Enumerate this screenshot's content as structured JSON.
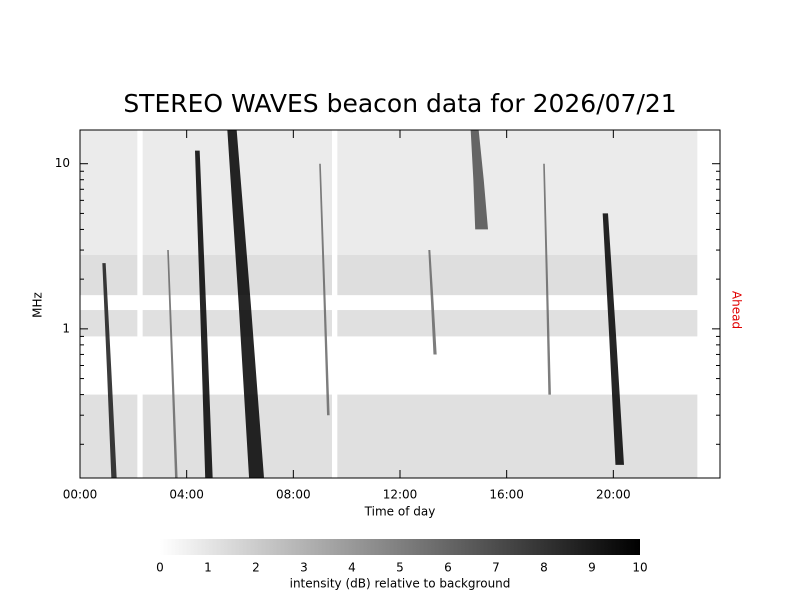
{
  "chart_data": {
    "type": "spectrogram",
    "title": "STEREO WAVES beacon data for 2026/07/21",
    "x_label": "Time of day",
    "y_label": "MHz",
    "side_label": "Ahead",
    "side_label_color": "#e00000",
    "xlim": [
      0,
      24
    ],
    "xticks": [
      {
        "value": 0,
        "label": "00:00"
      },
      {
        "value": 4,
        "label": "04:00"
      },
      {
        "value": 8,
        "label": "08:00"
      },
      {
        "value": 12,
        "label": "12:00"
      },
      {
        "value": 16,
        "label": "16:00"
      },
      {
        "value": 20,
        "label": "20:00"
      }
    ],
    "ylim": [
      0.125,
      16.0
    ],
    "log_y": true,
    "yticks": [
      1,
      10
    ],
    "yminorticks": [
      0.2,
      0.3,
      0.4,
      0.5,
      0.6,
      0.7,
      0.8,
      0.9,
      2,
      3,
      4,
      5,
      6,
      7,
      8,
      9
    ],
    "coverage": [
      0,
      23.15
    ],
    "gaps": [
      [
        2.15,
        2.35
      ],
      [
        9.45,
        9.65
      ]
    ],
    "background": [
      {
        "f_low": 0.125,
        "f_high": 0.4,
        "intensity": 1.2
      },
      {
        "f_low": 0.9,
        "f_high": 1.3,
        "intensity": 1.2
      },
      {
        "f_low": 1.6,
        "f_high": 2.8,
        "intensity": 1.3
      },
      {
        "f_low": 2.8,
        "f_high": 16.0,
        "intensity": 0.8
      }
    ],
    "bursts": [
      {
        "t_top": 0.9,
        "t_bottom": 1.25,
        "f_top": 2.5,
        "f_bottom": 0.125,
        "width": 0.25,
        "intensity": 9
      },
      {
        "t_top": 3.3,
        "t_bottom": 3.6,
        "f_top": 3.0,
        "f_bottom": 0.125,
        "width": 0.12,
        "intensity": 6
      },
      {
        "t_top": 4.4,
        "t_bottom": 4.8,
        "f_top": 12.0,
        "f_bottom": 0.125,
        "width": 0.35,
        "intensity": 10
      },
      {
        "t_top": 5.7,
        "t_bottom": 6.55,
        "f_top": 16.0,
        "f_bottom": 0.125,
        "width": 0.7,
        "intensity": 10
      },
      {
        "t_top": 9.0,
        "t_bottom": 9.3,
        "f_top": 10.0,
        "f_bottom": 0.3,
        "width": 0.12,
        "intensity": 6
      },
      {
        "t_top": 13.1,
        "t_bottom": 13.3,
        "f_top": 3.0,
        "f_bottom": 0.7,
        "width": 0.15,
        "intensity": 6
      },
      {
        "t_top": 14.8,
        "t_bottom": 15.0,
        "f_top": 16.0,
        "f_bottom": 4.0,
        "width": 0.6,
        "intensity": 7
      },
      {
        "t_top": 17.4,
        "t_bottom": 17.6,
        "f_top": 10.0,
        "f_bottom": 0.4,
        "width": 0.12,
        "intensity": 6
      },
      {
        "t_top": 19.7,
        "t_bottom": 20.2,
        "f_top": 5.0,
        "f_bottom": 0.15,
        "width": 0.4,
        "intensity": 10
      }
    ],
    "colorbar": {
      "label": "intensity (dB) relative to background",
      "lim": [
        0,
        10
      ],
      "ticks": [
        0,
        1,
        2,
        3,
        4,
        5,
        6,
        7,
        8,
        9,
        10
      ]
    }
  }
}
